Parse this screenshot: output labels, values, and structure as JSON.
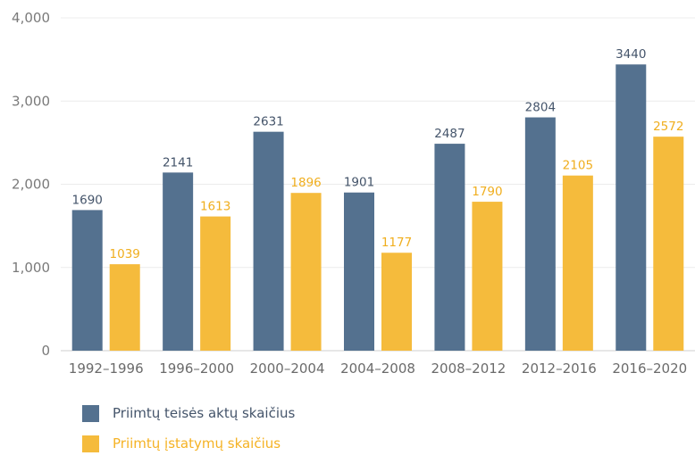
{
  "chart_data": {
    "type": "bar",
    "categories": [
      "1992–1996",
      "1996–2000",
      "2000–2004",
      "2004–2008",
      "2008–2012",
      "2012–2016",
      "2016–2020"
    ],
    "series": [
      {
        "name": "Priimtų teisės aktų skaičius",
        "color": "#54718f",
        "values": [
          1690,
          2141,
          2631,
          1901,
          2487,
          2804,
          3440
        ]
      },
      {
        "name": "Priimtų įstatymų skaičius",
        "color": "#f5bb3c",
        "values": [
          1039,
          1613,
          1896,
          1177,
          1790,
          2105,
          2572
        ]
      }
    ],
    "ylim": [
      0,
      4000
    ],
    "yticks": [
      0,
      1000,
      2000,
      3000,
      4000
    ],
    "ytick_labels": [
      "0",
      "1,000",
      "2,000",
      "3,000",
      "4,000"
    ],
    "grid": true,
    "legend_position": "bottom-left",
    "title": "",
    "xlabel": "",
    "ylabel": ""
  }
}
